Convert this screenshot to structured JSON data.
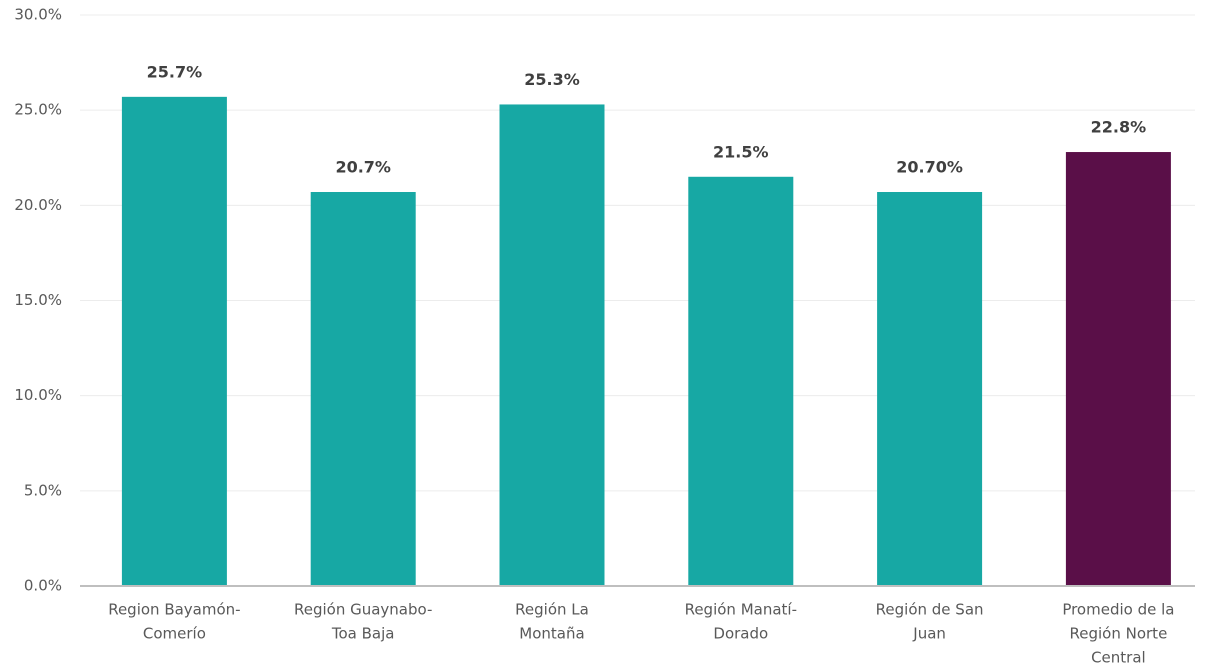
{
  "chart_data": {
    "type": "bar",
    "categories": [
      [
        "Region  Bayamón-",
        "Comerío"
      ],
      [
        "Región Guaynabo-",
        "Toa Baja"
      ],
      [
        "Región La",
        "Montaña"
      ],
      [
        "Región Manatí-",
        "Dorado"
      ],
      [
        "Región de San",
        "Juan"
      ],
      [
        "Promedio de la",
        "Región Norte",
        "Central"
      ]
    ],
    "values": [
      25.7,
      20.7,
      25.3,
      21.5,
      20.7,
      22.8
    ],
    "value_labels": [
      "25.7%",
      "20.7%",
      "25.3%",
      "21.5%",
      "20.70%",
      "22.8%"
    ],
    "colors": [
      "#17a8a4",
      "#17a8a4",
      "#17a8a4",
      "#17a8a4",
      "#17a8a4",
      "#5a0f48"
    ],
    "ylim": [
      0,
      30
    ],
    "yticks": [
      {
        "value": 0,
        "label": "0.0%"
      },
      {
        "value": 5,
        "label": "5.0%"
      },
      {
        "value": 10,
        "label": "10.0%"
      },
      {
        "value": 15,
        "label": "15.0%"
      },
      {
        "value": 20,
        "label": "20.0%"
      },
      {
        "value": 25,
        "label": "25.0%"
      },
      {
        "value": 30,
        "label": "30.0%"
      }
    ],
    "grid": true
  }
}
